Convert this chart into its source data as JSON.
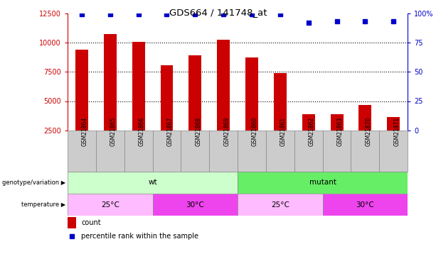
{
  "title": "GDS664 / 141748_at",
  "samples": [
    "GSM21864",
    "GSM21865",
    "GSM21866",
    "GSM21867",
    "GSM21868",
    "GSM21869",
    "GSM21860",
    "GSM21861",
    "GSM21862",
    "GSM21863",
    "GSM21870",
    "GSM21871"
  ],
  "counts": [
    9400,
    10700,
    10050,
    8050,
    8900,
    10250,
    8750,
    7400,
    3900,
    3900,
    4650,
    3650
  ],
  "percentile_ranks": [
    99,
    99,
    99,
    99,
    99,
    99,
    99,
    99,
    92,
    93,
    93,
    93
  ],
  "ylim_left": [
    2500,
    12500
  ],
  "ylim_right": [
    0,
    100
  ],
  "yticks_left": [
    2500,
    5000,
    7500,
    10000,
    12500
  ],
  "ytick_labels_left": [
    "2500",
    "5000",
    "7500",
    "10000",
    "12500"
  ],
  "yticks_right": [
    0,
    25,
    50,
    75,
    100
  ],
  "ytick_labels_right": [
    "0",
    "25",
    "50",
    "75",
    "100%"
  ],
  "bar_color": "#cc0000",
  "dot_color": "#0000cc",
  "bar_width": 0.45,
  "left_axis_color": "#cc0000",
  "right_axis_color": "#0000cc",
  "geno_wt_color": "#ccffcc",
  "geno_mutant_color": "#66ee66",
  "temp_light_color": "#ffbbff",
  "temp_dark_color": "#ee44ee",
  "sample_box_color": "#cccccc",
  "legend_items": [
    {
      "label": "count",
      "color": "#cc0000"
    },
    {
      "label": "percentile rank within the sample",
      "color": "#0000cc"
    }
  ],
  "geno_data": [
    {
      "label": "wt",
      "start": 0,
      "end": 6
    },
    {
      "label": "mutant",
      "start": 6,
      "end": 12
    }
  ],
  "temp_data": [
    {
      "label": "25°C",
      "start": 0,
      "end": 3,
      "light": true
    },
    {
      "label": "30°C",
      "start": 3,
      "end": 6,
      "light": false
    },
    {
      "label": "25°C",
      "start": 6,
      "end": 9,
      "light": true
    },
    {
      "label": "30°C",
      "start": 9,
      "end": 12,
      "light": false
    }
  ]
}
